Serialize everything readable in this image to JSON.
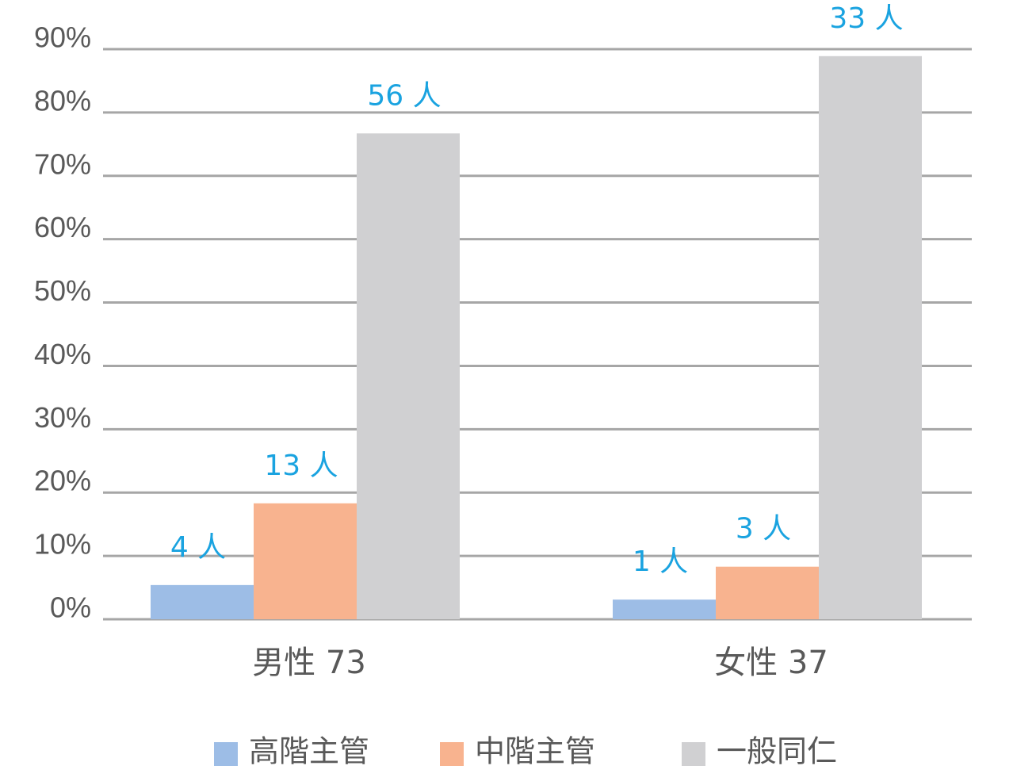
{
  "chart_data": {
    "type": "bar",
    "categories": [
      "男性 73",
      "女性 37"
    ],
    "series": [
      {
        "name": "高階主管",
        "color": "#9dbde6",
        "values": [
          5.4,
          3.1
        ],
        "annotations": [
          "4 人",
          "1 人"
        ]
      },
      {
        "name": "中階主管",
        "color": "#f8b38f",
        "values": [
          18.3,
          8.3
        ],
        "annotations": [
          "13 人",
          "3 人"
        ]
      },
      {
        "name": "一般同仁",
        "color": "#d0d0d2",
        "values": [
          76.7,
          88.9
        ],
        "annotations": [
          "56 人",
          "33 人"
        ]
      }
    ],
    "ylim": [
      0,
      90
    ],
    "yticks": [
      {
        "value": 0,
        "label": "0%"
      },
      {
        "value": 10,
        "label": "10%"
      },
      {
        "value": 20,
        "label": "20%"
      },
      {
        "value": 30,
        "label": "30%"
      },
      {
        "value": 40,
        "label": "40%"
      },
      {
        "value": 50,
        "label": "50%"
      },
      {
        "value": 60,
        "label": "60%"
      },
      {
        "value": 70,
        "label": "70%"
      },
      {
        "value": 80,
        "label": "80%"
      },
      {
        "value": 90,
        "label": "90%"
      }
    ],
    "grid": true
  }
}
